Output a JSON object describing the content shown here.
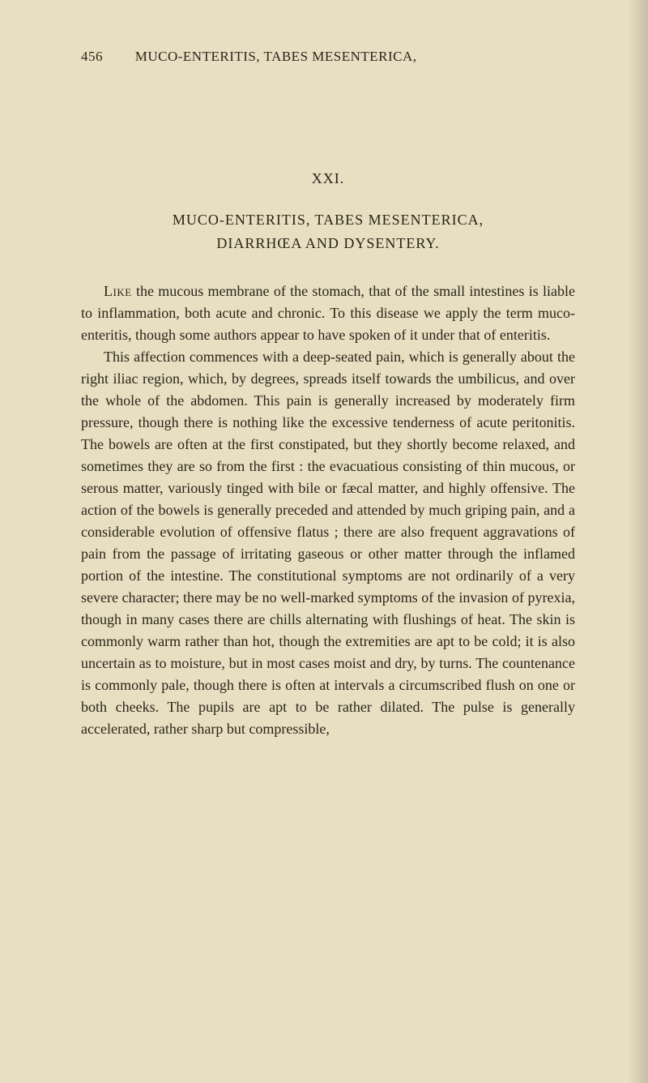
{
  "page": {
    "number": "456",
    "headerTitle": "MUCO-ENTERITIS, TABES MESENTERICA,"
  },
  "chapter": {
    "number": "XXI.",
    "titleLine1": "MUCO-ENTERITIS, TABES MESENTERICA,",
    "titleLine2": "DIARRHŒA AND DYSENTERY."
  },
  "paragraphs": {
    "p1_lead": "Like",
    "p1_rest": " the mucous membrane of the stomach, that of the small intestines is liable to inflammation, both acute and chronic. To this disease we apply the term muco-enteritis, though some authors appear to have spoken of it under that of enteritis.",
    "p2": "This affection commences with a deep-seated pain, which is generally about the right iliac region, which, by degrees, spreads itself towards the umbilicus, and over the whole of the abdomen. This pain is generally increased by moderately firm pressure, though there is nothing like the excessive tenderness of acute peritonitis. The bowels are often at the first constipated, but they shortly become relaxed, and sometimes they are so from the first : the evacuatious consisting of thin mucous, or serous matter, variously tinged with bile or fæcal matter, and highly offensive. The action of the bowels is generally preceded and attended by much griping pain, and a considerable evolution of offensive flatus ; there are also frequent aggravations of pain from the passage of irritating gaseous or other matter through the inflamed portion of the intestine. The constitutional symptoms are not ordinarily of a very severe character; there may be no well-marked symptoms of the invasion of pyrexia, though in many cases there are chills alternating with flushings of heat. The skin is commonly warm rather than hot, though the extremities are apt to be cold; it is also uncertain as to moisture, but in most cases moist and dry, by turns. The countenance is commonly pale, though there is often at intervals a circumscribed flush on one or both cheeks. The pupils are apt to be rather dilated. The pulse is generally accelerated, rather sharp but compressible,"
  },
  "styling": {
    "backgroundColor": "#e8dfc2",
    "textColor": "#2a2418",
    "bodyFontSize": 18,
    "headerFontSize": 17,
    "lineHeight": 1.5,
    "pageWidth": 800,
    "pageHeight": 1336
  }
}
